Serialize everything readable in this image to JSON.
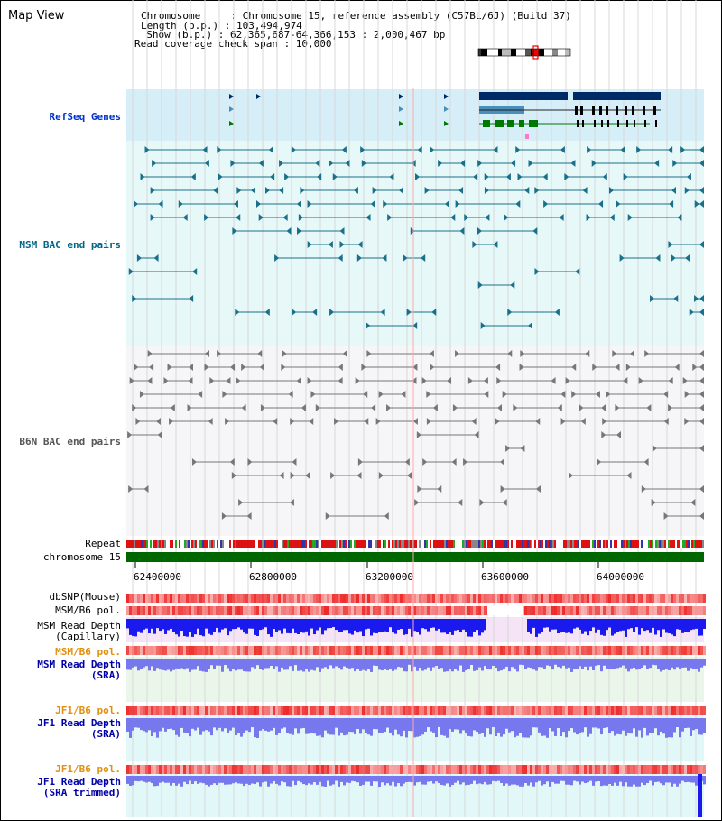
{
  "header": {
    "title": "Map View",
    "chromosome_line": "Chromosome     : Chromosome 15, reference assembly (C57BL/6J) (Build 37)",
    "length_line": "Length (b.p.) : 103,494,974",
    "show_line": "  Show (b.p.) : 62,365,687-64,366,153 : 2,000,467 bp",
    "coverage_line": "Read coverage check span : 10,000"
  },
  "tracks": {
    "refseq": "RefSeq Genes",
    "msm_bac": "MSM BAC end pairs",
    "b6n_bac": "B6N BAC end pairs",
    "repeat": "Repeat",
    "chromosome": "chromosome 15",
    "dbsnp": "dbSNP(Mouse)",
    "msm_b6_pol_1": "MSM/B6 pol.",
    "msm_read_depth_cap": "MSM Read Depth\n(Capillary)",
    "msm_b6_pol_2": "MSM/B6 pol.",
    "msm_read_depth_sra": "MSM Read Depth\n(SRA)",
    "jf1_b6_pol_1": "JF1/B6 pol.",
    "jf1_read_depth_sra": "JF1 Read Depth\n(SRA)",
    "jf1_b6_pol_2": "JF1/B6 pol.",
    "jf1_read_depth_trim": "JF1 Read Depth\n(SRA trimmed)"
  },
  "axis": {
    "ticks": [
      "62400000",
      "62800000",
      "63200000",
      "63600000",
      "64000000"
    ]
  },
  "colors": {
    "refseq_bg": "#d6eef8",
    "msm_bg": "#e6f8f8",
    "b6n_bg": "#f6f6f9",
    "chromosome_bar": "#006600",
    "refseq_dark": "#002a66",
    "refseq_mid": "#4a8fbb",
    "refseq_green": "#007700",
    "msm_feature": "#1a6f8a",
    "b6n_feature": "#777777",
    "depth_blue": "#1a1aee",
    "depth_light": "#7777ee",
    "snp_red": "#e23a3a"
  }
}
